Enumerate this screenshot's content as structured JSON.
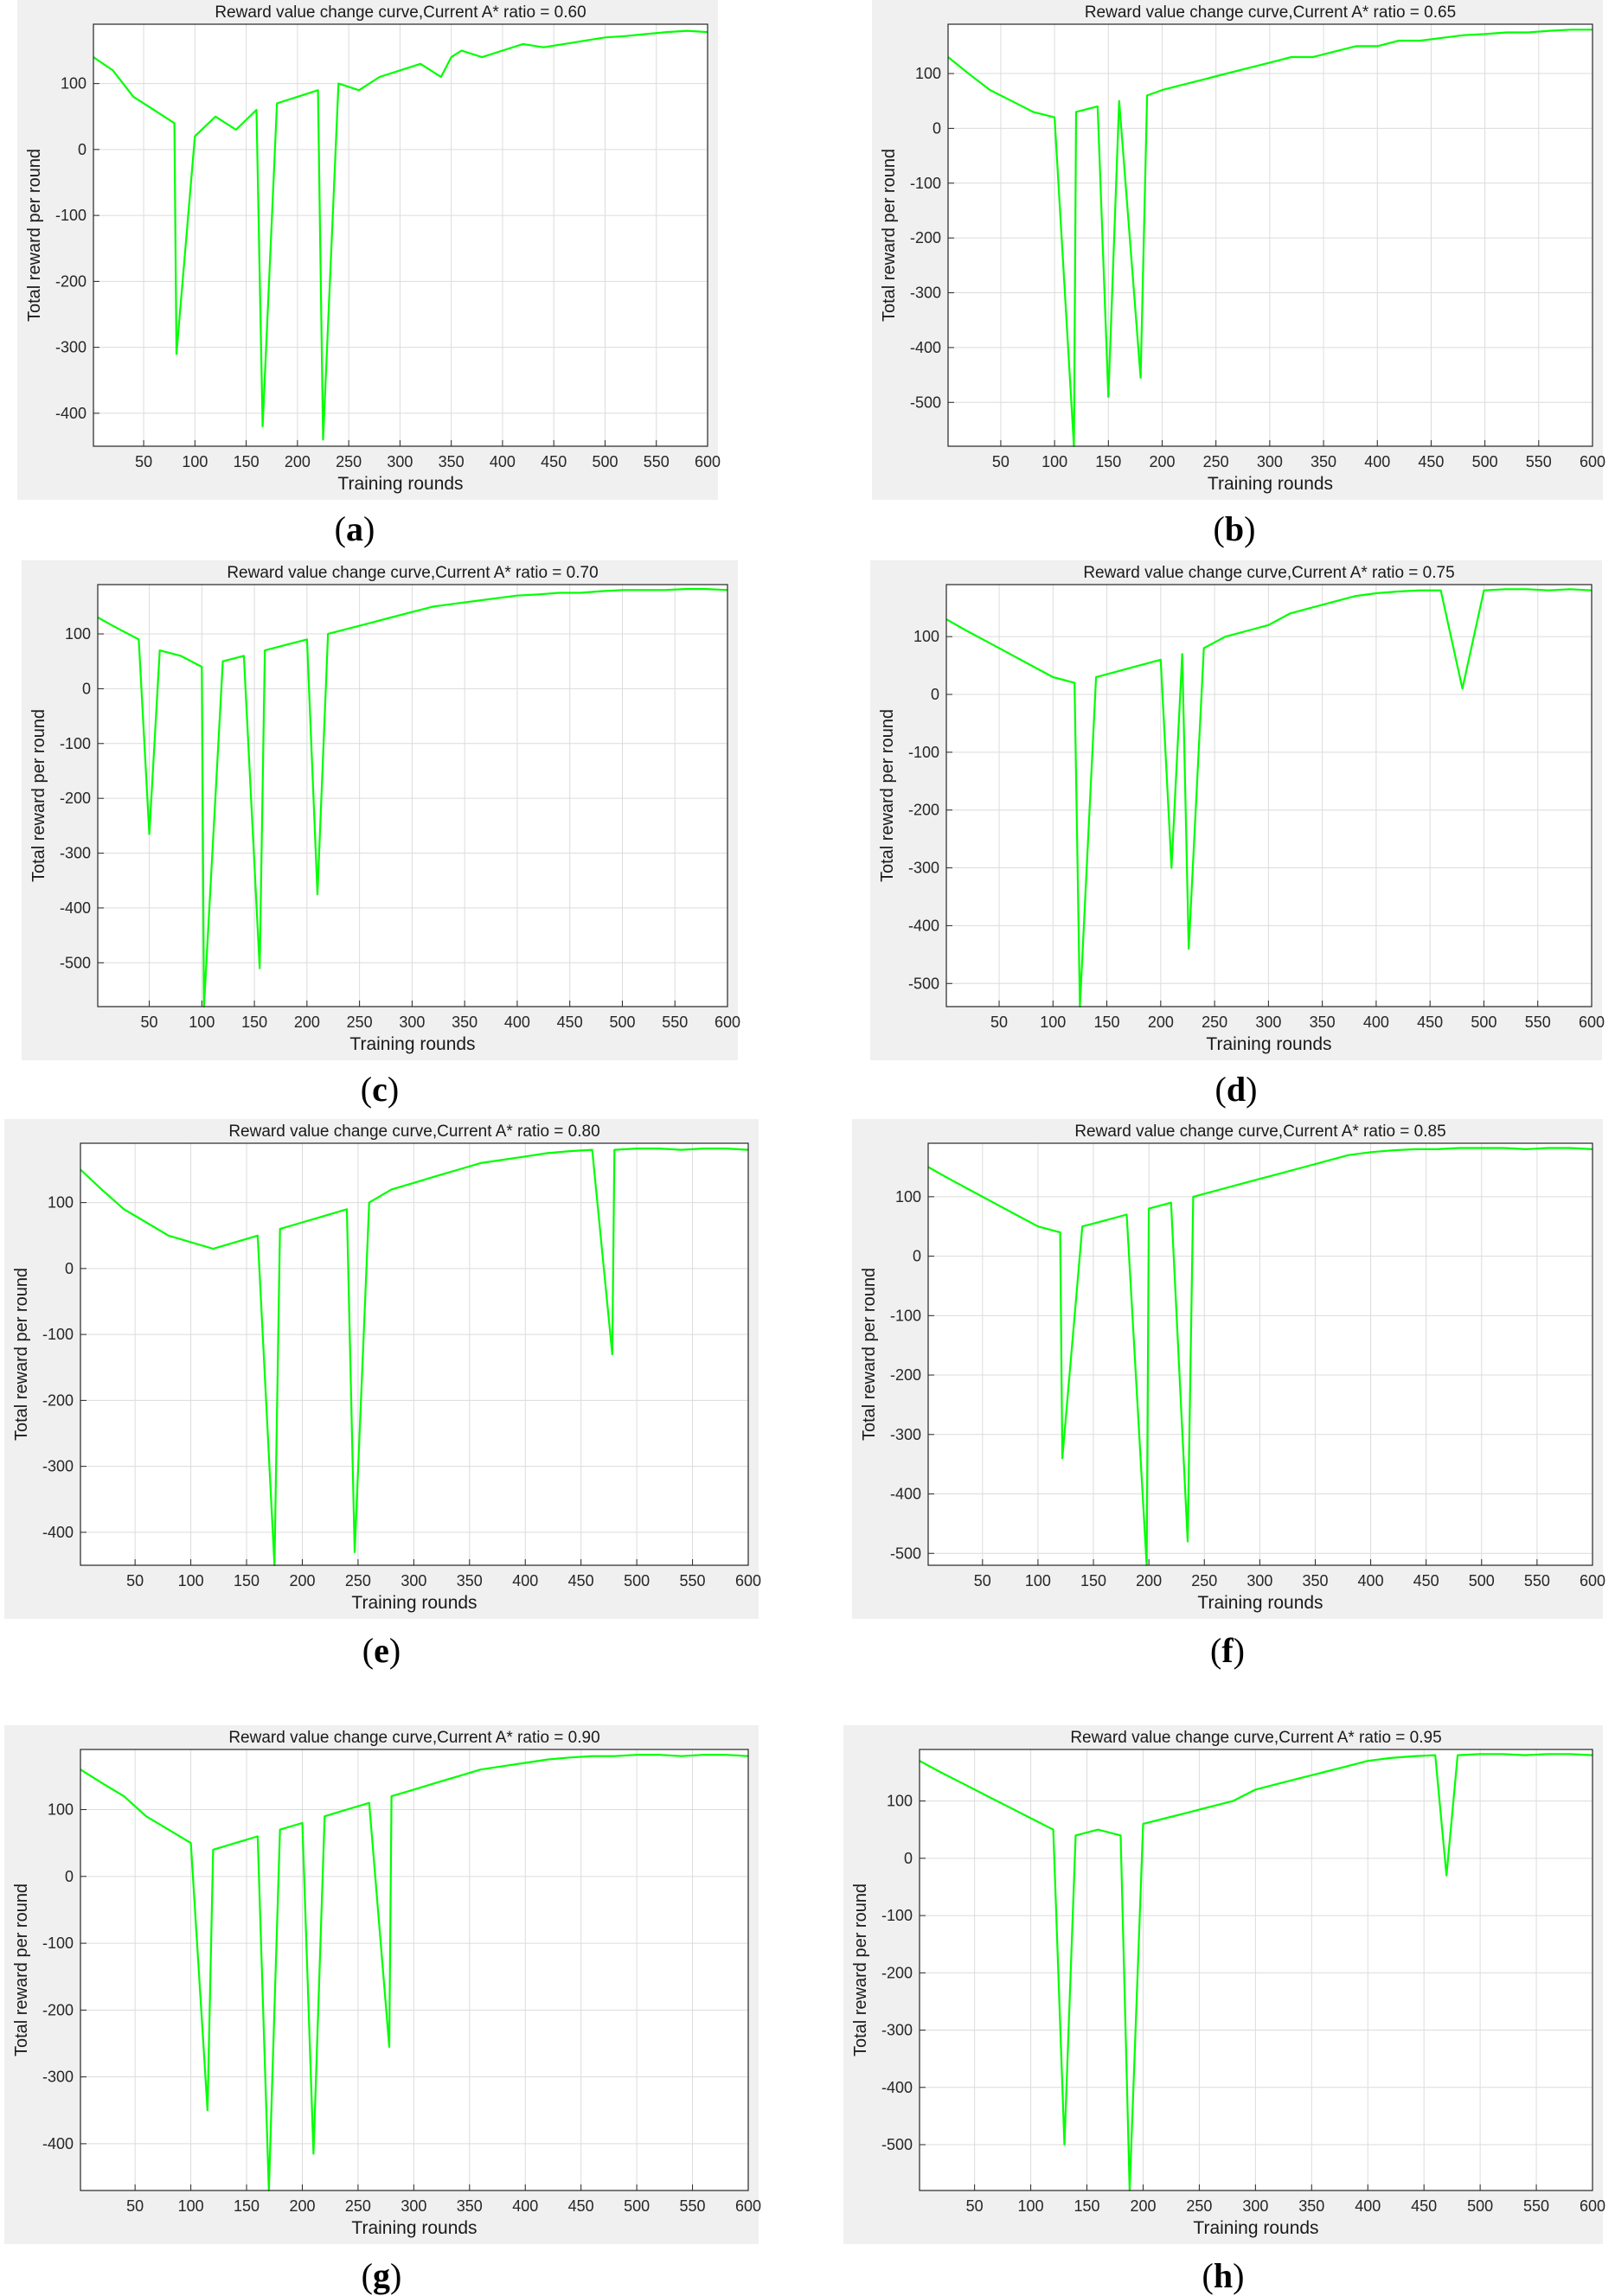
{
  "line_color": "#00ff00",
  "chart_data": [
    {
      "type": "line",
      "label": "a",
      "title": "Reward value change curve,Current A* ratio = 0.60",
      "xlabel": "Training rounds",
      "ylabel": "Total reward per round",
      "xlim": [
        1,
        600
      ],
      "ylim": [
        -450,
        190
      ],
      "xticks": [
        50,
        100,
        150,
        200,
        250,
        300,
        350,
        400,
        450,
        500,
        550,
        600
      ],
      "yticks": [
        -400,
        -300,
        -200,
        -100,
        0,
        100
      ],
      "grid": true,
      "series": [
        {
          "x": [
            1,
            20,
            40,
            60,
            80,
            82,
            100,
            120,
            140,
            160,
            166,
            180,
            200,
            220,
            225,
            240,
            260,
            280,
            300,
            320,
            340,
            350,
            360,
            380,
            400,
            420,
            440,
            460,
            480,
            500,
            520,
            540,
            560,
            580,
            600
          ],
          "y": [
            140,
            120,
            80,
            60,
            40,
            -310,
            20,
            50,
            30,
            60,
            -420,
            70,
            80,
            90,
            -440,
            100,
            90,
            110,
            120,
            130,
            110,
            140,
            150,
            140,
            150,
            160,
            155,
            160,
            165,
            170,
            172,
            175,
            178,
            180,
            178
          ]
        }
      ]
    },
    {
      "type": "line",
      "label": "b",
      "title": "Reward value change curve,Current A* ratio = 0.65",
      "xlabel": "Training rounds",
      "ylabel": "Total reward per round",
      "xlim": [
        1,
        600
      ],
      "ylim": [
        -580,
        190
      ],
      "xticks": [
        50,
        100,
        150,
        200,
        250,
        300,
        350,
        400,
        450,
        500,
        550,
        600
      ],
      "yticks": [
        -500,
        -400,
        -300,
        -200,
        -100,
        0,
        100
      ],
      "grid": true,
      "series": [
        {
          "x": [
            1,
            20,
            40,
            60,
            80,
            100,
            118,
            120,
            140,
            150,
            160,
            180,
            186,
            200,
            220,
            240,
            260,
            280,
            300,
            320,
            340,
            360,
            380,
            400,
            420,
            440,
            460,
            480,
            500,
            520,
            540,
            560,
            580,
            600
          ],
          "y": [
            130,
            100,
            70,
            50,
            30,
            20,
            -580,
            30,
            40,
            -490,
            50,
            -455,
            60,
            70,
            80,
            90,
            100,
            110,
            120,
            130,
            130,
            140,
            150,
            150,
            160,
            160,
            165,
            170,
            172,
            175,
            175,
            178,
            180,
            180
          ]
        }
      ]
    },
    {
      "type": "line",
      "label": "c",
      "title": "Reward value change curve,Current A* ratio = 0.70",
      "xlabel": "Training rounds",
      "ylabel": "Total reward per round",
      "xlim": [
        1,
        600
      ],
      "ylim": [
        -580,
        190
      ],
      "xticks": [
        50,
        100,
        150,
        200,
        250,
        300,
        350,
        400,
        450,
        500,
        550,
        600
      ],
      "yticks": [
        -500,
        -400,
        -300,
        -200,
        -100,
        0,
        100
      ],
      "grid": true,
      "series": [
        {
          "x": [
            1,
            20,
            40,
            50,
            60,
            80,
            100,
            102,
            120,
            140,
            155,
            160,
            180,
            200,
            210,
            220,
            240,
            260,
            280,
            300,
            320,
            340,
            360,
            380,
            400,
            420,
            440,
            460,
            480,
            500,
            520,
            540,
            560,
            580,
            600
          ],
          "y": [
            130,
            110,
            90,
            -265,
            70,
            60,
            40,
            -580,
            50,
            60,
            -510,
            70,
            80,
            90,
            -375,
            100,
            110,
            120,
            130,
            140,
            150,
            155,
            160,
            165,
            170,
            172,
            175,
            175,
            178,
            180,
            180,
            180,
            182,
            182,
            180
          ]
        }
      ]
    },
    {
      "type": "line",
      "label": "d",
      "title": "Reward value change curve,Current A* ratio = 0.75",
      "xlabel": "Training rounds",
      "ylabel": "Total reward per round",
      "xlim": [
        1,
        600
      ],
      "ylim": [
        -540,
        190
      ],
      "xticks": [
        50,
        100,
        150,
        200,
        250,
        300,
        350,
        400,
        450,
        500,
        550,
        600
      ],
      "yticks": [
        -500,
        -400,
        -300,
        -200,
        -100,
        0,
        100
      ],
      "grid": true,
      "series": [
        {
          "x": [
            1,
            20,
            40,
            60,
            80,
            100,
            120,
            125,
            140,
            160,
            180,
            200,
            210,
            220,
            226,
            240,
            260,
            280,
            300,
            320,
            340,
            360,
            380,
            400,
            420,
            440,
            460,
            480,
            500,
            520,
            540,
            560,
            580,
            600
          ],
          "y": [
            130,
            110,
            90,
            70,
            50,
            30,
            20,
            -540,
            30,
            40,
            50,
            60,
            -300,
            70,
            -440,
            80,
            100,
            110,
            120,
            140,
            150,
            160,
            170,
            175,
            178,
            180,
            180,
            10,
            180,
            182,
            182,
            180,
            182,
            180
          ]
        }
      ]
    },
    {
      "type": "line",
      "label": "e",
      "title": "Reward value change curve,Current A* ratio = 0.80",
      "xlabel": "Training rounds",
      "ylabel": "Total reward per round",
      "xlim": [
        1,
        600
      ],
      "ylim": [
        -450,
        190
      ],
      "xticks": [
        50,
        100,
        150,
        200,
        250,
        300,
        350,
        400,
        450,
        500,
        550,
        600
      ],
      "yticks": [
        -400,
        -300,
        -200,
        -100,
        0,
        100
      ],
      "grid": true,
      "series": [
        {
          "x": [
            1,
            20,
            40,
            60,
            80,
            100,
            120,
            140,
            160,
            175,
            180,
            200,
            220,
            240,
            247,
            260,
            280,
            300,
            320,
            340,
            360,
            380,
            400,
            420,
            440,
            460,
            478,
            480,
            500,
            520,
            540,
            560,
            580,
            600
          ],
          "y": [
            150,
            120,
            90,
            70,
            50,
            40,
            30,
            40,
            50,
            -450,
            60,
            70,
            80,
            90,
            -430,
            100,
            120,
            130,
            140,
            150,
            160,
            165,
            170,
            175,
            178,
            180,
            -130,
            180,
            182,
            182,
            180,
            182,
            182,
            180
          ]
        }
      ]
    },
    {
      "type": "line",
      "label": "f",
      "title": "Reward value change curve,Current A* ratio = 0.85",
      "xlabel": "Training rounds",
      "ylabel": "Total reward per round",
      "xlim": [
        1,
        600
      ],
      "ylim": [
        -520,
        190
      ],
      "xticks": [
        50,
        100,
        150,
        200,
        250,
        300,
        350,
        400,
        450,
        500,
        550,
        600
      ],
      "yticks": [
        -500,
        -400,
        -300,
        -200,
        -100,
        0,
        100
      ],
      "grid": true,
      "series": [
        {
          "x": [
            1,
            20,
            40,
            60,
            80,
            100,
            120,
            122,
            140,
            160,
            180,
            198,
            200,
            220,
            235,
            240,
            260,
            280,
            300,
            320,
            340,
            360,
            380,
            400,
            420,
            440,
            460,
            480,
            500,
            520,
            540,
            560,
            580,
            600
          ],
          "y": [
            150,
            130,
            110,
            90,
            70,
            50,
            40,
            -340,
            50,
            60,
            70,
            -520,
            80,
            90,
            -480,
            100,
            110,
            120,
            130,
            140,
            150,
            160,
            170,
            175,
            178,
            180,
            180,
            182,
            182,
            182,
            180,
            182,
            182,
            180
          ]
        }
      ]
    },
    {
      "type": "line",
      "label": "g",
      "title": "Reward value change curve,Current A* ratio = 0.90",
      "xlabel": "Training rounds",
      "ylabel": "Total reward per round",
      "xlim": [
        1,
        600
      ],
      "ylim": [
        -470,
        190
      ],
      "xticks": [
        50,
        100,
        150,
        200,
        250,
        300,
        350,
        400,
        450,
        500,
        550,
        600
      ],
      "yticks": [
        -400,
        -300,
        -200,
        -100,
        0,
        100
      ],
      "grid": true,
      "series": [
        {
          "x": [
            1,
            20,
            40,
            60,
            80,
            100,
            115,
            120,
            140,
            160,
            170,
            180,
            200,
            210,
            220,
            240,
            260,
            278,
            280,
            300,
            320,
            340,
            360,
            380,
            400,
            420,
            440,
            460,
            480,
            500,
            520,
            540,
            560,
            580,
            600
          ],
          "y": [
            160,
            140,
            120,
            90,
            70,
            50,
            -350,
            40,
            50,
            60,
            -470,
            70,
            80,
            -415,
            90,
            100,
            110,
            -255,
            120,
            130,
            140,
            150,
            160,
            165,
            170,
            175,
            178,
            180,
            180,
            182,
            182,
            180,
            182,
            182,
            180
          ]
        }
      ]
    },
    {
      "type": "line",
      "label": "h",
      "title": "Reward value change curve,Current A* ratio = 0.95",
      "xlabel": "Training rounds",
      "ylabel": "Total reward per round",
      "xlim": [
        1,
        600
      ],
      "ylim": [
        -580,
        190
      ],
      "xticks": [
        50,
        100,
        150,
        200,
        250,
        300,
        350,
        400,
        450,
        500,
        550,
        600
      ],
      "yticks": [
        -500,
        -400,
        -300,
        -200,
        -100,
        0,
        100
      ],
      "grid": true,
      "series": [
        {
          "x": [
            1,
            20,
            40,
            60,
            80,
            100,
            120,
            130,
            140,
            160,
            180,
            188,
            200,
            220,
            240,
            260,
            280,
            300,
            320,
            340,
            360,
            380,
            400,
            420,
            440,
            460,
            470,
            480,
            500,
            520,
            540,
            560,
            580,
            600
          ],
          "y": [
            170,
            150,
            130,
            110,
            90,
            70,
            50,
            -500,
            40,
            50,
            40,
            -580,
            60,
            70,
            80,
            90,
            100,
            120,
            130,
            140,
            150,
            160,
            170,
            175,
            178,
            180,
            -30,
            180,
            182,
            182,
            180,
            182,
            182,
            180
          ]
        }
      ]
    }
  ]
}
